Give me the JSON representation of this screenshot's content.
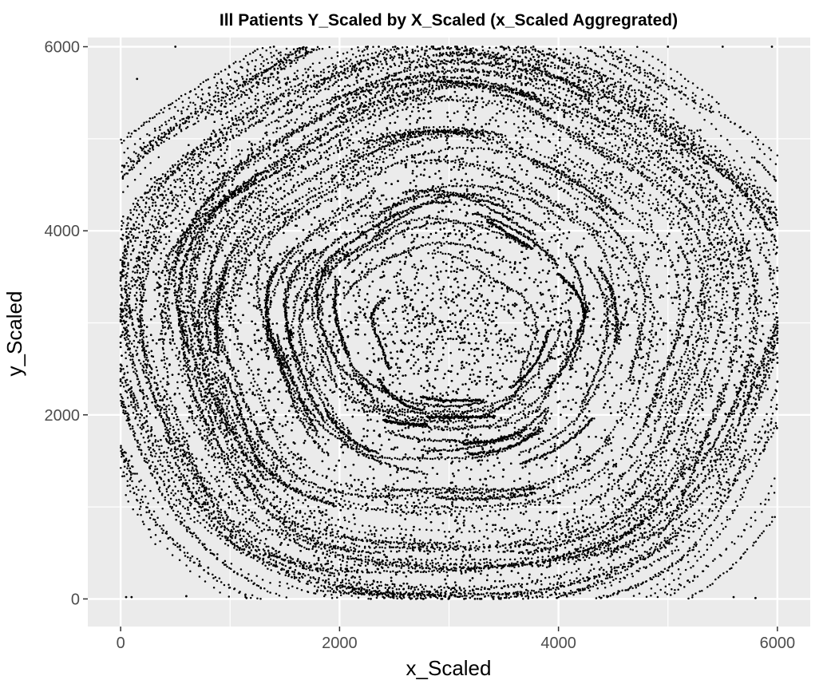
{
  "chart_data": {
    "type": "scatter",
    "title": "Ill Patients Y_Scaled by X_Scaled (x_Scaled Aggregrated)",
    "xlabel": "x_Scaled",
    "ylabel": "y_Scaled",
    "xlim": [
      -300,
      6300
    ],
    "ylim": [
      -300,
      6100
    ],
    "x_ticks": [
      0,
      2000,
      4000,
      6000
    ],
    "y_ticks": [
      0,
      2000,
      4000,
      6000
    ],
    "x_tick_labels": [
      "0",
      "2000",
      "4000",
      "6000"
    ],
    "y_tick_labels": [
      "0",
      "2000",
      "4000",
      "6000"
    ],
    "grid": true,
    "legend": "none",
    "point_color": "#000000",
    "panel_color": "#ebebeb",
    "grid_color": "#ffffff",
    "density": {
      "description": "dense cloud of points filling roughly an ellipse centered near (3000, 3000); concentric curved tracks toward the edges",
      "center": [
        3000,
        3000
      ],
      "x_range": [
        0,
        6000
      ],
      "y_range": [
        0,
        6000
      ],
      "approx_point_count": 40000
    },
    "series": [
      {
        "values": [
          [
            50,
            20
          ],
          [
            100,
            20
          ],
          [
            600,
            30
          ],
          [
            1150,
            10
          ],
          [
            3000,
            10
          ],
          [
            5600,
            20
          ],
          [
            5800,
            10
          ],
          [
            5000,
            6000
          ],
          [
            5500,
            6000
          ],
          [
            5950,
            6000
          ],
          [
            500,
            6000
          ],
          [
            1400,
            6000
          ],
          [
            150,
            5650
          ],
          [
            800,
            340
          ],
          [
            100,
            1550
          ]
        ]
      }
    ]
  }
}
